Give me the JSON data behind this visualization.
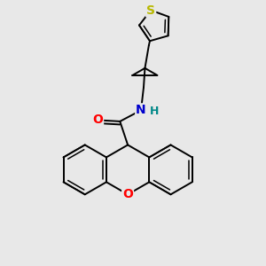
{
  "bg_color": "#e8e8e8",
  "atom_colors": {
    "S": "#b8b800",
    "O": "#ff0000",
    "N": "#0000cc",
    "H": "#008888",
    "C": "#000000"
  },
  "bond_color": "#000000",
  "bond_width": 1.4,
  "font_size_atom": 10,
  "figsize": [
    3.0,
    3.0
  ],
  "dpi": 100
}
